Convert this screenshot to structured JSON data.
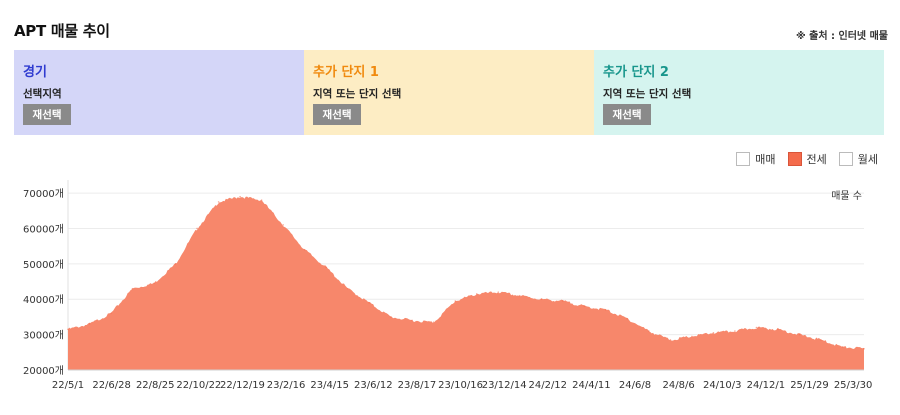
{
  "header": {
    "title": "APT 매물 추이",
    "source": "※ 출처 : 인터넷 매물"
  },
  "panels": [
    {
      "title": "경기",
      "subtitle": "선택지역",
      "button": "재선택",
      "bg": "#d4d6f8",
      "title_color": "#2f3bd0"
    },
    {
      "title": "추가 단지 1",
      "subtitle": "지역 또는 단지 선택",
      "button": "재선택",
      "bg": "#fdedc4",
      "title_color": "#f08a0e"
    },
    {
      "title": "추가 단지 2",
      "subtitle": "지역 또는 단지 선택",
      "button": "재선택",
      "bg": "#d5f4ef",
      "title_color": "#18968c"
    }
  ],
  "legend": [
    {
      "label": "매매",
      "checked": false
    },
    {
      "label": "전세",
      "checked": true
    },
    {
      "label": "월세",
      "checked": false
    }
  ],
  "colors": {
    "area_fill": "#f7876b",
    "accent": "#f46b4c"
  },
  "chart_data": {
    "type": "area",
    "series": [
      {
        "name": "전세",
        "x": [
          "22/5/1",
          "22/6/1",
          "22/6/28",
          "22/7/25",
          "22/8/25",
          "22/9/20",
          "22/10/22",
          "22/11/20",
          "22/12/19",
          "23/1/20",
          "23/2/16",
          "23/3/15",
          "23/4/15",
          "23/5/15",
          "23/6/12",
          "23/7/15",
          "23/8/17",
          "23/9/15",
          "23/10/16",
          "23/11/15",
          "23/12/14",
          "24/1/15",
          "24/2/12",
          "24/3/12",
          "24/4/11",
          "24/5/10",
          "24/6/8",
          "24/7/8",
          "24/8/6",
          "24/9/5",
          "24/10/3",
          "24/11/2",
          "24/12/1",
          "24/12/31",
          "25/1/29",
          "25/2/28",
          "25/3/30",
          "25/4/30"
        ],
        "values": [
          31500,
          33000,
          36000,
          43000,
          44500,
          50000,
          60000,
          67500,
          69000,
          68000,
          61000,
          54000,
          49000,
          43000,
          39000,
          35000,
          34000,
          33500,
          39500,
          41500,
          42000,
          41000,
          40000,
          39500,
          38000,
          37000,
          34500,
          31000,
          28500,
          29500,
          30500,
          31000,
          32000,
          31500,
          30000,
          28500,
          26500,
          26000
        ]
      }
    ],
    "y_tick_labels": [
      "70000개",
      "60000개",
      "50000개",
      "40000개",
      "30000개",
      "20000개"
    ],
    "y_ticks": [
      70000,
      60000,
      50000,
      40000,
      30000,
      20000
    ],
    "ylim": [
      20000,
      72000
    ],
    "x_tick_labels": [
      "22/5/1",
      "22/6/28",
      "22/8/25",
      "22/10/22",
      "22/12/19",
      "23/2/16",
      "23/4/15",
      "23/6/12",
      "23/8/17",
      "23/10/16",
      "23/12/14",
      "24/2/12",
      "24/4/11",
      "24/6/8",
      "24/8/6",
      "24/10/3",
      "24/12/1",
      "25/1/29",
      "25/3/30"
    ],
    "series_annotation": "매물 수",
    "grid": true
  }
}
